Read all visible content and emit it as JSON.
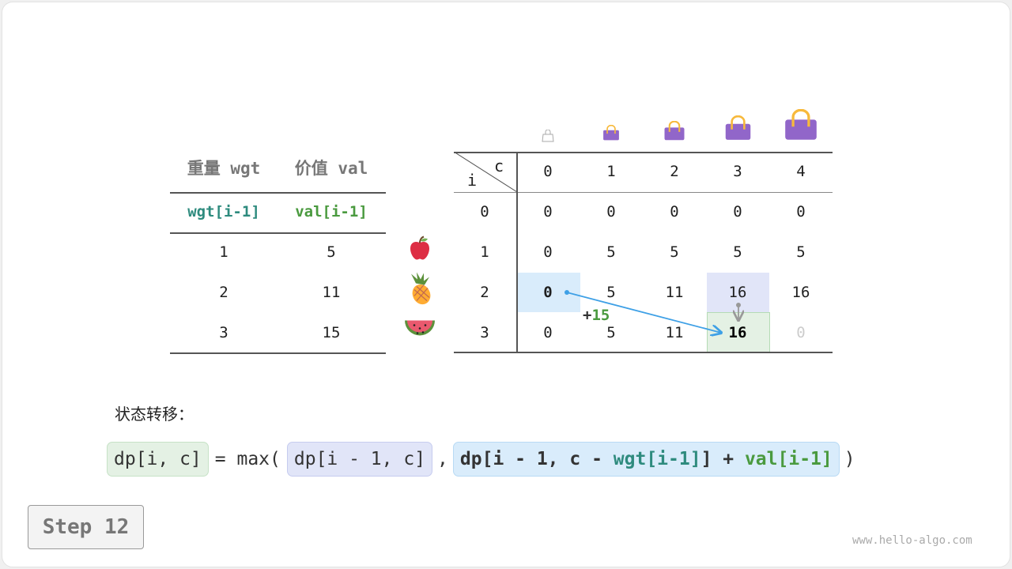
{
  "items_table": {
    "headers": [
      "重量 wgt",
      "价值 val"
    ],
    "subheaders": [
      "wgt[i-1]",
      "val[i-1]"
    ],
    "rows": [
      [
        "1",
        "5"
      ],
      [
        "2",
        "11"
      ],
      [
        "3",
        "15"
      ]
    ],
    "fruit_icons": [
      "apple-icon",
      "pineapple-icon",
      "watermelon-icon"
    ]
  },
  "dp_table": {
    "corner_row_label": "i",
    "corner_col_label": "c",
    "col_headers": [
      "0",
      "1",
      "2",
      "3",
      "4"
    ],
    "row_headers": [
      "0",
      "1",
      "2",
      "3"
    ],
    "cells": [
      [
        "0",
        "0",
        "0",
        "0",
        "0"
      ],
      [
        "0",
        "5",
        "5",
        "5",
        "5"
      ],
      [
        "0",
        "5",
        "11",
        "16",
        "16"
      ],
      [
        "0",
        "5",
        "11",
        "16",
        "0"
      ]
    ],
    "bag_icons": [
      "bag-icon-0",
      "bag-icon-1",
      "bag-icon-2",
      "bag-icon-3",
      "bag-icon-4"
    ],
    "annotation": {
      "plus": "+",
      "value": "15"
    }
  },
  "transition": {
    "label": "状态转移：",
    "lhs": "dp[i, c]",
    "eq": "= max(",
    "option1": "dp[i - 1, c]",
    "comma": ",",
    "option2_a": "dp[i - 1, c - ",
    "option2_wgt": "wgt[i-1]",
    "option2_b": "] + ",
    "option2_val": "val[i-1]",
    "close": ")"
  },
  "step_label": "Step 12",
  "watermark": "www.hello-algo.com",
  "colors": {
    "teal": "#2e8b7e",
    "green": "#4a9a3f",
    "blue_cell": "#d9ecfb",
    "lavender_cell": "#e1e5f8",
    "green_cell": "#e4f1e4",
    "arrow": "#3ea0e6",
    "bag": "#9166c9"
  }
}
